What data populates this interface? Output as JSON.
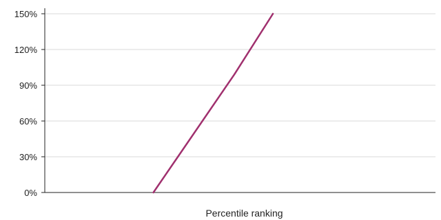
{
  "chart_data": {
    "type": "line",
    "title": "",
    "xlabel": "Percentile ranking",
    "ylabel": "",
    "xlim": [
      0,
      100
    ],
    "ylim": [
      0,
      150
    ],
    "ytick_values": [
      0,
      30,
      60,
      90,
      120,
      150
    ],
    "ytick_labels": [
      "0%",
      "30%",
      "60%",
      "90%",
      "120%",
      "150%"
    ],
    "grid": "horizontal",
    "legend": "none",
    "series": [
      {
        "color": "#a0306e",
        "x": [
          27.8,
          48.5,
          58.4
        ],
        "y": [
          0,
          99,
          150
        ]
      }
    ]
  }
}
